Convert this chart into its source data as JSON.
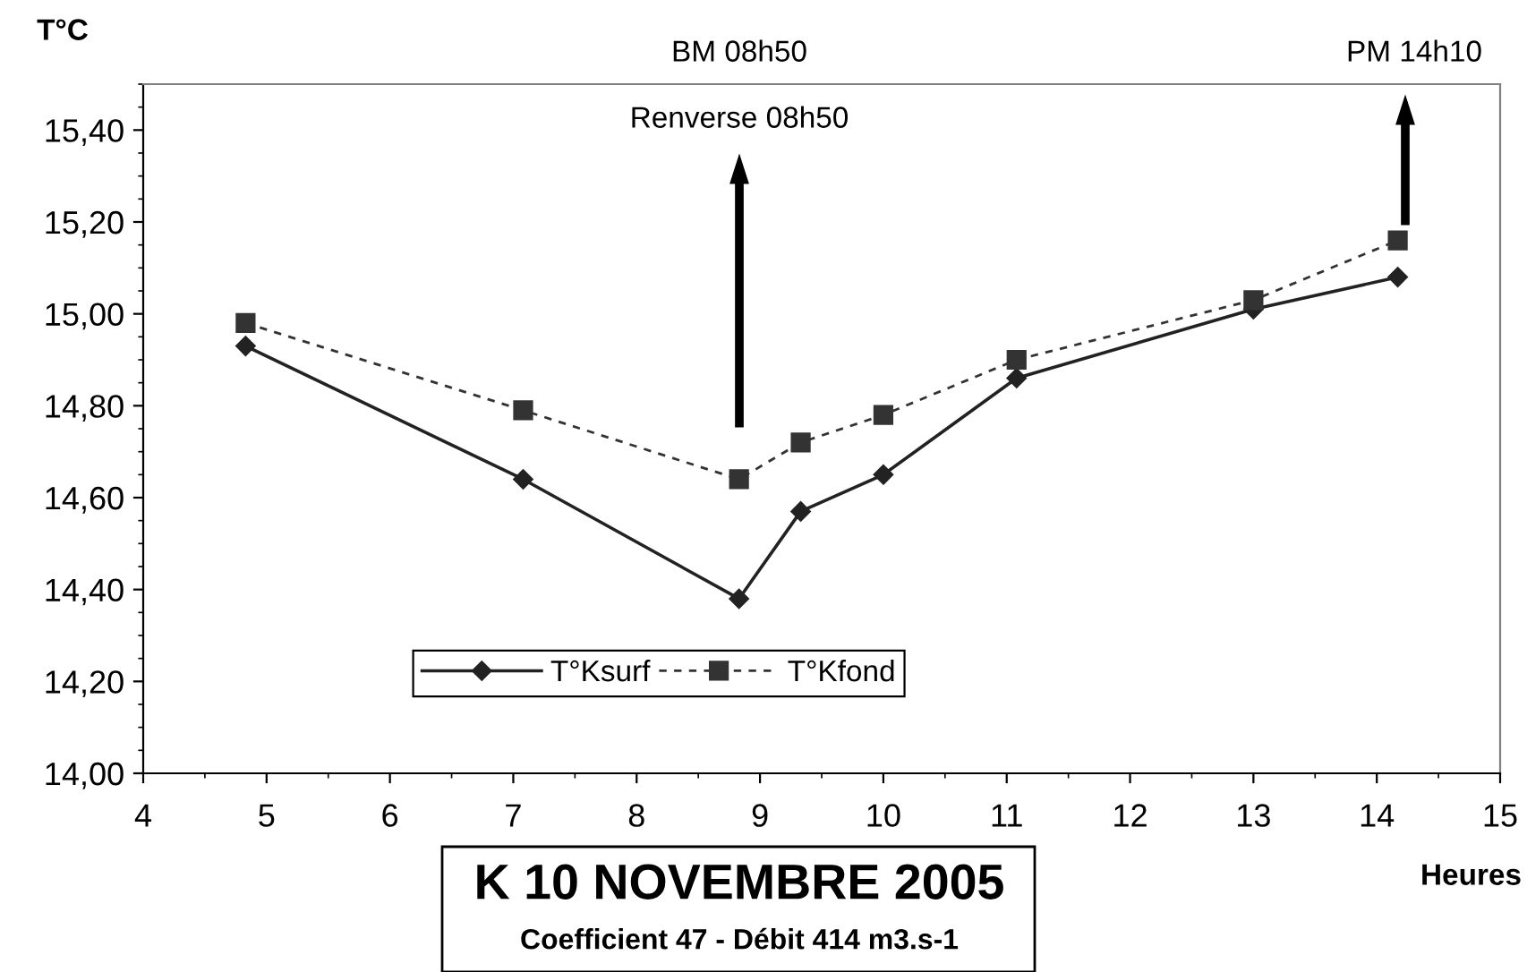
{
  "chart_data": {
    "type": "line",
    "title": "K 10 NOVEMBRE 2005",
    "subtitle": "Coefficient 47 - Débit 414 m3.s-1",
    "xlabel": "Heures",
    "ylabel": "T°C",
    "x": [
      4.83,
      7.08,
      8.83,
      9.33,
      10.0,
      11.08,
      13.0,
      14.17
    ],
    "series": [
      {
        "name": "T°Ksurf",
        "color": "#222222",
        "marker": "diamond",
        "line_style": "solid",
        "values": [
          14.93,
          14.64,
          14.38,
          14.57,
          14.65,
          14.86,
          15.01,
          15.08
        ]
      },
      {
        "name": "T°Kfond",
        "color": "#333333",
        "marker": "square",
        "line_style": "dashed",
        "values": [
          14.98,
          14.79,
          14.64,
          14.72,
          14.78,
          14.9,
          15.03,
          15.16
        ]
      }
    ],
    "xlim": [
      4,
      15
    ],
    "xticks": [
      4,
      5,
      6,
      7,
      8,
      9,
      10,
      11,
      12,
      13,
      14,
      15
    ],
    "ylim": [
      14.0,
      15.5
    ],
    "yticks": [
      {
        "value": 14.0,
        "label": "14,00"
      },
      {
        "value": 14.2,
        "label": "14,20"
      },
      {
        "value": 14.4,
        "label": "14,40"
      },
      {
        "value": 14.6,
        "label": "14,60"
      },
      {
        "value": 14.8,
        "label": "14,80"
      },
      {
        "value": 15.0,
        "label": "15,00"
      },
      {
        "value": 15.2,
        "label": "15,20"
      },
      {
        "value": 15.4,
        "label": "15,40"
      }
    ],
    "annotations": [
      "BM 08h50",
      "Renverse 08h50",
      "PM 14h10"
    ],
    "grid": false,
    "legend": "bottom"
  }
}
